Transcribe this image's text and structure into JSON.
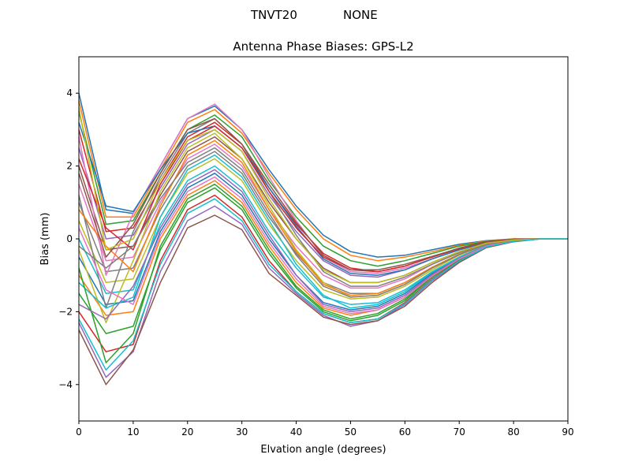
{
  "header": {
    "antenna": "TNVT20",
    "radome": "NONE"
  },
  "chart_data": {
    "type": "line",
    "title": "Antenna Phase Biases: GPS-L2",
    "xlabel": "Elvation angle (degrees)",
    "ylabel": "Bias (mm)",
    "xlim": [
      0,
      90
    ],
    "ylim": [
      -5,
      5
    ],
    "xticks": [
      0,
      10,
      20,
      30,
      40,
      50,
      60,
      70,
      80,
      90
    ],
    "yticks": [
      -4,
      -2,
      0,
      2,
      4
    ],
    "grid": false,
    "legend": "none",
    "palette": [
      "#1f77b4",
      "#ff7f0e",
      "#2ca02c",
      "#d62728",
      "#9467bd",
      "#8c564b",
      "#e377c2",
      "#7f7f7f",
      "#bcbd22",
      "#17becf"
    ],
    "x": [
      0,
      5,
      10,
      15,
      20,
      25,
      30,
      35,
      40,
      45,
      50,
      55,
      60,
      65,
      70,
      75,
      80,
      85,
      90
    ],
    "series": [
      {
        "values": [
          4.0,
          0.8,
          0.7,
          2.0,
          3.3,
          3.65,
          3.0,
          1.9,
          0.9,
          0.1,
          -0.35,
          -0.5,
          -0.45,
          -0.3,
          -0.15,
          -0.05,
          0.0,
          0.0,
          0.0
        ]
      },
      {
        "values": [
          3.8,
          0.6,
          0.6,
          1.9,
          3.2,
          3.55,
          2.9,
          1.8,
          0.8,
          0.0,
          -0.45,
          -0.6,
          -0.5,
          -0.35,
          -0.18,
          -0.06,
          0.0,
          0.0,
          0.0
        ]
      },
      {
        "values": [
          3.5,
          0.4,
          0.5,
          1.8,
          3.0,
          3.4,
          2.8,
          1.6,
          0.6,
          -0.2,
          -0.6,
          -0.75,
          -0.6,
          -0.4,
          -0.2,
          -0.07,
          -0.01,
          0.0,
          0.0
        ]
      },
      {
        "values": [
          3.0,
          0.2,
          0.3,
          1.6,
          2.8,
          3.2,
          2.6,
          1.4,
          0.4,
          -0.4,
          -0.8,
          -0.9,
          -0.75,
          -0.5,
          -0.25,
          -0.08,
          -0.01,
          0.0,
          0.0
        ]
      },
      {
        "values": [
          2.5,
          0.0,
          0.1,
          1.4,
          2.6,
          3.0,
          2.4,
          1.2,
          0.2,
          -0.6,
          -1.0,
          -1.05,
          -0.85,
          -0.55,
          -0.3,
          -0.1,
          -0.02,
          0.0,
          0.0
        ]
      },
      {
        "values": [
          2.0,
          -0.3,
          -0.2,
          1.2,
          2.4,
          2.8,
          2.2,
          1.0,
          0.0,
          -0.8,
          -1.2,
          -1.2,
          -1.0,
          -0.65,
          -0.35,
          -0.12,
          -0.03,
          0.0,
          0.0
        ]
      },
      {
        "values": [
          1.5,
          -0.6,
          -0.5,
          1.0,
          2.2,
          2.6,
          2.0,
          0.8,
          -0.2,
          -1.0,
          -1.35,
          -1.35,
          -1.1,
          -0.7,
          -0.38,
          -0.13,
          -0.03,
          0.0,
          0.0
        ]
      },
      {
        "values": [
          1.0,
          -0.9,
          -0.8,
          0.8,
          2.0,
          2.4,
          1.8,
          0.6,
          -0.4,
          -1.2,
          -1.5,
          -1.5,
          -1.2,
          -0.8,
          -0.42,
          -0.15,
          -0.04,
          0.0,
          0.0
        ]
      },
      {
        "values": [
          0.5,
          -1.2,
          -1.1,
          0.6,
          1.8,
          2.2,
          1.6,
          0.4,
          -0.6,
          -1.4,
          -1.65,
          -1.6,
          -1.3,
          -0.85,
          -0.45,
          -0.16,
          -0.04,
          0.0,
          0.0
        ]
      },
      {
        "values": [
          0.0,
          -1.5,
          -1.4,
          0.4,
          1.6,
          2.0,
          1.4,
          0.2,
          -0.8,
          -1.6,
          -1.8,
          -1.75,
          -1.4,
          -0.9,
          -0.5,
          -0.18,
          -0.05,
          0.0,
          0.0
        ]
      },
      {
        "values": [
          -0.5,
          -1.8,
          -1.7,
          0.2,
          1.4,
          1.8,
          1.2,
          0.0,
          -1.0,
          -1.75,
          -1.95,
          -1.85,
          -1.5,
          -0.95,
          -0.52,
          -0.19,
          -0.05,
          0.0,
          0.0
        ]
      },
      {
        "values": [
          -1.0,
          -2.1,
          -2.0,
          0.0,
          1.2,
          1.6,
          1.0,
          -0.2,
          -1.2,
          -1.9,
          -2.1,
          -1.95,
          -1.6,
          -1.0,
          -0.55,
          -0.2,
          -0.06,
          0.0,
          0.0
        ]
      },
      {
        "values": [
          -1.5,
          -2.6,
          -2.4,
          -0.3,
          1.0,
          1.4,
          0.8,
          -0.4,
          -1.35,
          -2.0,
          -2.25,
          -2.1,
          -1.7,
          -1.05,
          -0.58,
          -0.21,
          -0.06,
          0.0,
          0.0
        ]
      },
      {
        "values": [
          -2.0,
          -3.1,
          -2.9,
          -0.6,
          0.8,
          1.2,
          0.6,
          -0.6,
          -1.45,
          -2.05,
          -2.3,
          -2.2,
          -1.75,
          -1.1,
          -0.6,
          -0.22,
          -0.07,
          0.0,
          0.0
        ]
      },
      {
        "values": [
          -2.3,
          -3.8,
          -3.1,
          -0.9,
          0.5,
          0.9,
          0.4,
          -0.8,
          -1.5,
          -2.1,
          -2.4,
          -2.25,
          -1.8,
          -1.15,
          -0.62,
          -0.23,
          -0.07,
          0.0,
          0.0
        ]
      },
      {
        "values": [
          -2.5,
          -4.0,
          -3.05,
          -1.2,
          0.3,
          0.65,
          0.25,
          -0.95,
          -1.55,
          -2.15,
          -2.35,
          -2.25,
          -1.85,
          -1.2,
          -0.65,
          -0.24,
          -0.08,
          0.0,
          0.0
        ]
      },
      {
        "values": [
          2.8,
          -1.0,
          0.7,
          2.0,
          3.3,
          3.7,
          3.0,
          1.7,
          0.5,
          -0.5,
          -0.9,
          -0.95,
          -0.8,
          -0.55,
          -0.3,
          -0.1,
          -0.02,
          0.0,
          0.0
        ]
      },
      {
        "values": [
          1.2,
          -1.9,
          0.2,
          1.7,
          2.9,
          3.3,
          2.6,
          1.3,
          0.1,
          -0.9,
          -1.3,
          -1.3,
          -1.05,
          -0.7,
          -0.38,
          -0.13,
          -0.03,
          0.0,
          0.0
        ]
      },
      {
        "values": [
          -0.3,
          -2.3,
          -0.6,
          1.3,
          2.5,
          2.9,
          2.2,
          0.9,
          -0.3,
          -1.2,
          -1.6,
          -1.55,
          -1.25,
          -0.8,
          -0.43,
          -0.15,
          -0.04,
          0.0,
          0.0
        ]
      },
      {
        "values": [
          -1.2,
          -1.9,
          -1.6,
          0.6,
          1.9,
          2.3,
          1.7,
          0.5,
          -0.7,
          -1.55,
          -1.9,
          -1.8,
          -1.45,
          -0.92,
          -0.5,
          -0.18,
          -0.05,
          0.0,
          0.0
        ]
      },
      {
        "values": [
          3.2,
          0.9,
          0.75,
          1.9,
          2.9,
          3.1,
          2.5,
          1.4,
          0.35,
          -0.55,
          -0.95,
          -1.0,
          -0.85,
          -0.55,
          -0.3,
          -0.1,
          -0.02,
          0.0,
          0.0
        ]
      },
      {
        "values": [
          0.8,
          -0.2,
          -0.9,
          0.9,
          2.3,
          2.7,
          2.1,
          0.8,
          -0.35,
          -1.25,
          -1.55,
          -1.5,
          -1.2,
          -0.78,
          -0.42,
          -0.15,
          -0.04,
          0.0,
          0.0
        ]
      },
      {
        "values": [
          -0.8,
          -3.4,
          -2.6,
          -0.2,
          1.1,
          1.5,
          0.9,
          -0.3,
          -1.3,
          -1.95,
          -2.2,
          -2.05,
          -1.65,
          -1.05,
          -0.57,
          -0.21,
          -0.06,
          0.0,
          0.0
        ]
      },
      {
        "values": [
          2.2,
          0.3,
          -0.3,
          1.5,
          2.7,
          3.1,
          2.5,
          1.3,
          0.3,
          -0.5,
          -0.85,
          -0.9,
          -0.75,
          -0.5,
          -0.27,
          -0.09,
          -0.02,
          0.0,
          0.0
        ]
      },
      {
        "values": [
          -1.8,
          -2.2,
          -1.3,
          0.3,
          1.5,
          1.9,
          1.3,
          0.1,
          -1.0,
          -1.8,
          -2.0,
          -1.9,
          -1.55,
          -0.98,
          -0.53,
          -0.19,
          -0.05,
          0.0,
          0.0
        ]
      },
      {
        "values": [
          1.8,
          -0.5,
          0.4,
          1.8,
          3.0,
          3.3,
          2.6,
          1.5,
          0.45,
          -0.45,
          -0.85,
          -0.85,
          -0.7,
          -0.48,
          -0.26,
          -0.09,
          -0.02,
          0.0,
          0.0
        ]
      },
      {
        "values": [
          0.3,
          -1.4,
          -1.8,
          0.1,
          1.3,
          1.7,
          1.1,
          -0.1,
          -1.1,
          -1.85,
          -2.05,
          -1.95,
          -1.6,
          -1.02,
          -0.55,
          -0.2,
          -0.05,
          0.0,
          0.0
        ]
      },
      {
        "values": [
          -0.2,
          -0.8,
          -0.2,
          1.1,
          2.1,
          2.5,
          1.9,
          0.7,
          -0.45,
          -1.3,
          -1.6,
          -1.55,
          -1.25,
          -0.8,
          -0.43,
          -0.15,
          -0.04,
          0.0,
          0.0
        ]
      },
      {
        "values": [
          3.6,
          -0.3,
          0.0,
          1.6,
          2.7,
          3.0,
          2.4,
          1.1,
          0.0,
          -0.85,
          -1.2,
          -1.2,
          -1.0,
          -0.65,
          -0.35,
          -0.12,
          -0.03,
          0.0,
          0.0
        ]
      },
      {
        "values": [
          -2.2,
          -3.6,
          -2.8,
          -0.7,
          0.7,
          1.1,
          0.5,
          -0.7,
          -1.45,
          -2.05,
          -2.3,
          -2.2,
          -1.78,
          -1.12,
          -0.61,
          -0.22,
          -0.07,
          0.0,
          0.0
        ]
      }
    ]
  }
}
